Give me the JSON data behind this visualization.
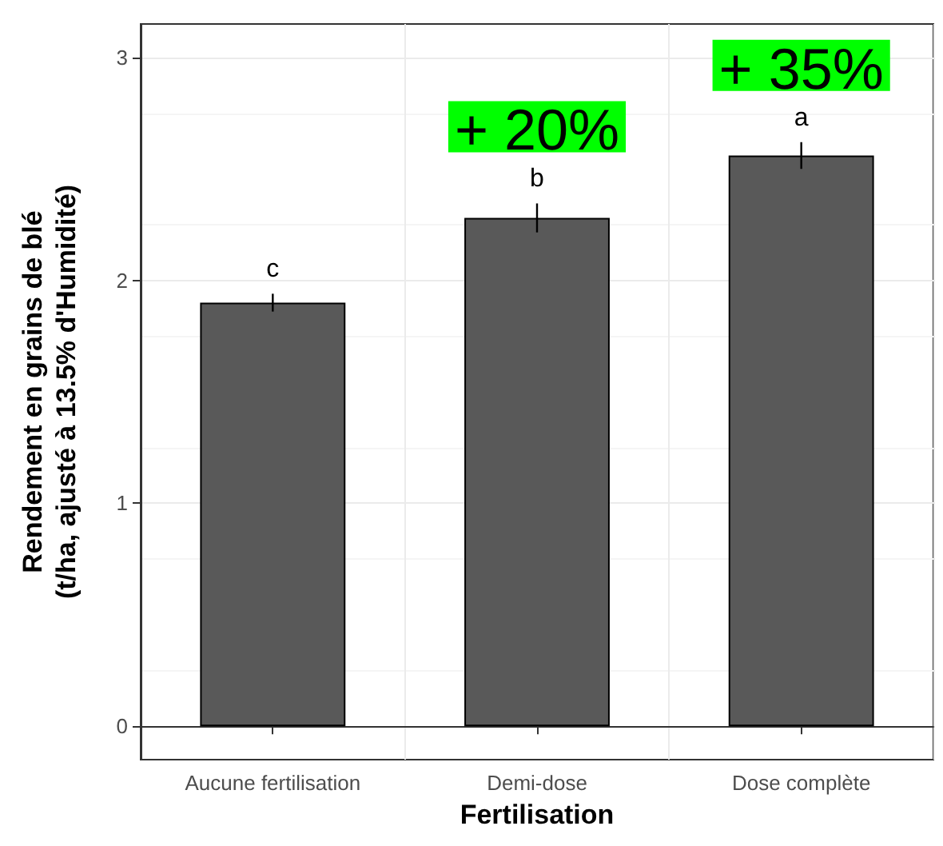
{
  "chart_data": {
    "type": "bar",
    "xlabel": "Fertilisation",
    "ylabel": "Rendement en grains de blé\n(t/ha, ajusté à 13.5% d'Humidité)",
    "categories": [
      "Aucune fertilisation",
      "Demi-dose",
      "Dose complète"
    ],
    "values": [
      1.9,
      2.28,
      2.56
    ],
    "color": "#595959",
    "errors": [
      0.04,
      0.065,
      0.06
    ],
    "ylim": [
      -0.15,
      3.15
    ],
    "yticks": [
      0,
      1,
      2,
      3
    ],
    "grid": true,
    "annotations": [
      "c",
      "b",
      "a",
      "+ 20%",
      "+ 35%"
    ]
  }
}
